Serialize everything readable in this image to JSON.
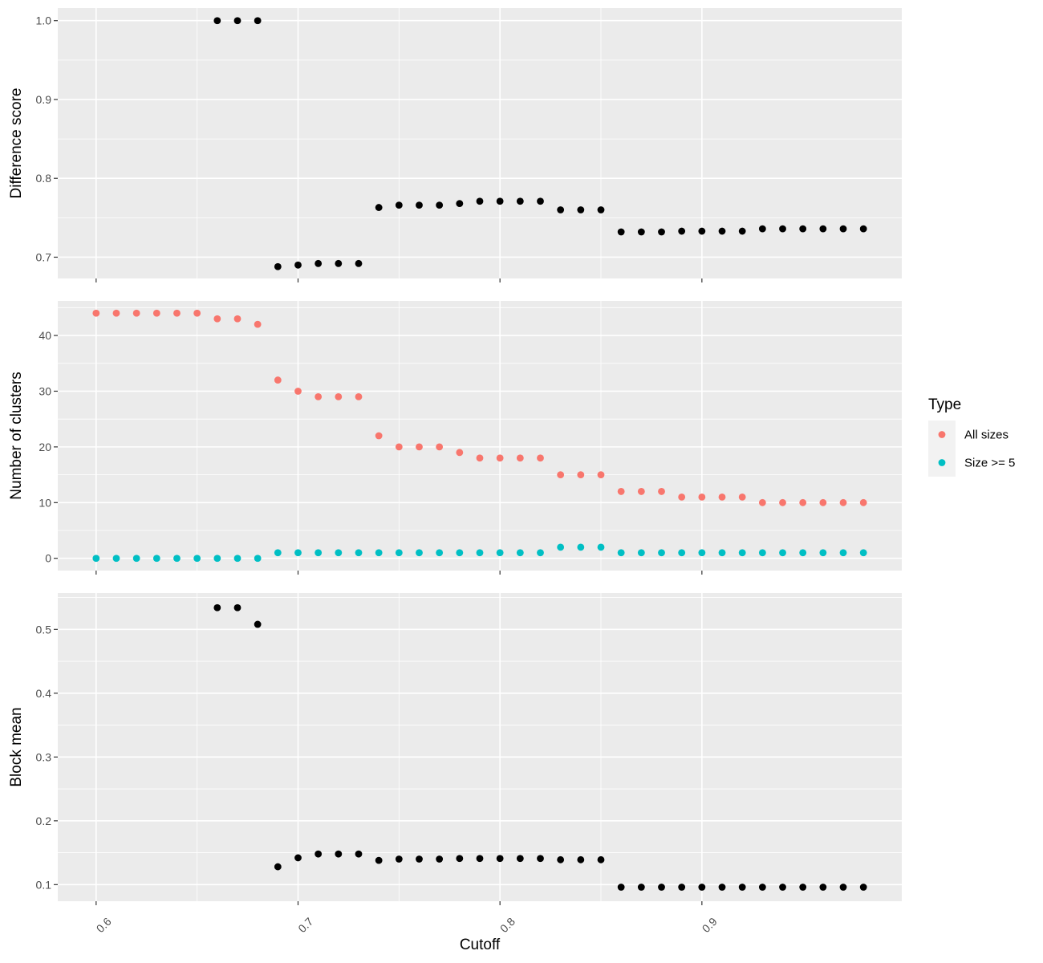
{
  "chart_data": {
    "type": "scatter",
    "layout": "three vertically stacked panels sharing the x axis",
    "x_axis": {
      "label": "Cutoff",
      "lim": [
        0.581,
        0.999
      ],
      "ticks": [
        0.6,
        0.7,
        0.8,
        0.9
      ],
      "tick_labels": [
        "0.6",
        "0.7",
        "0.8",
        "0.9"
      ],
      "tick_label_angle": -45
    },
    "legend": {
      "title": "Type",
      "position": "right",
      "entries": [
        {
          "label": "All sizes",
          "color": "#F8766D"
        },
        {
          "label": "Size >= 5",
          "color": "#00BFC4"
        }
      ]
    },
    "panels": [
      {
        "ylabel": "Difference score",
        "ylim": [
          0.673,
          1.016
        ],
        "y_ticks": [
          0.7,
          0.8,
          0.9,
          1.0
        ],
        "y_tick_labels": [
          "0.7",
          "0.8",
          "0.9",
          "1.0"
        ],
        "series": [
          {
            "color": "#000000",
            "x": [
              0.66,
              0.67,
              0.68,
              0.69,
              0.7,
              0.71,
              0.72,
              0.73,
              0.74,
              0.75,
              0.76,
              0.77,
              0.78,
              0.79,
              0.8,
              0.81,
              0.82,
              0.83,
              0.84,
              0.85,
              0.86,
              0.87,
              0.88,
              0.89,
              0.9,
              0.91,
              0.92,
              0.93,
              0.94,
              0.95,
              0.96,
              0.97,
              0.98
            ],
            "y": [
              1.0,
              1.0,
              1.0,
              0.688,
              0.69,
              0.692,
              0.692,
              0.692,
              0.763,
              0.766,
              0.766,
              0.766,
              0.768,
              0.771,
              0.771,
              0.771,
              0.771,
              0.76,
              0.76,
              0.76,
              0.732,
              0.732,
              0.732,
              0.733,
              0.733,
              0.733,
              0.733,
              0.736,
              0.736,
              0.736,
              0.736,
              0.736,
              0.736
            ]
          }
        ]
      },
      {
        "ylabel": "Number of clusters",
        "ylim": [
          -2.2,
          46.2
        ],
        "y_ticks": [
          0,
          10,
          20,
          30,
          40
        ],
        "y_tick_labels": [
          "0",
          "10",
          "20",
          "30",
          "40"
        ],
        "series": [
          {
            "name": "All sizes",
            "color": "#F8766D",
            "x": [
              0.6,
              0.61,
              0.62,
              0.63,
              0.64,
              0.65,
              0.66,
              0.67,
              0.68,
              0.69,
              0.7,
              0.71,
              0.72,
              0.73,
              0.74,
              0.75,
              0.76,
              0.77,
              0.78,
              0.79,
              0.8,
              0.81,
              0.82,
              0.83,
              0.84,
              0.85,
              0.86,
              0.87,
              0.88,
              0.89,
              0.9,
              0.91,
              0.92,
              0.93,
              0.94,
              0.95,
              0.96,
              0.97,
              0.98
            ],
            "y": [
              44,
              44,
              44,
              44,
              44,
              44,
              43,
              43,
              42,
              32,
              30,
              29,
              29,
              29,
              22,
              20,
              20,
              20,
              19,
              18,
              18,
              18,
              18,
              15,
              15,
              15,
              12,
              12,
              12,
              11,
              11,
              11,
              11,
              10,
              10,
              10,
              10,
              10,
              10
            ]
          },
          {
            "name": "Size >= 5",
            "color": "#00BFC4",
            "x": [
              0.6,
              0.61,
              0.62,
              0.63,
              0.64,
              0.65,
              0.66,
              0.67,
              0.68,
              0.69,
              0.7,
              0.71,
              0.72,
              0.73,
              0.74,
              0.75,
              0.76,
              0.77,
              0.78,
              0.79,
              0.8,
              0.81,
              0.82,
              0.83,
              0.84,
              0.85,
              0.86,
              0.87,
              0.88,
              0.89,
              0.9,
              0.91,
              0.92,
              0.93,
              0.94,
              0.95,
              0.96,
              0.97,
              0.98
            ],
            "y": [
              0,
              0,
              0,
              0,
              0,
              0,
              0,
              0,
              0,
              1,
              1,
              1,
              1,
              1,
              1,
              1,
              1,
              1,
              1,
              1,
              1,
              1,
              1,
              2,
              2,
              2,
              1,
              1,
              1,
              1,
              1,
              1,
              1,
              1,
              1,
              1,
              1,
              1,
              1
            ]
          }
        ]
      },
      {
        "ylabel": "Block mean",
        "ylim": [
          0.074,
          0.557
        ],
        "y_ticks": [
          0.1,
          0.2,
          0.3,
          0.4,
          0.5
        ],
        "y_tick_labels": [
          "0.1",
          "0.2",
          "0.3",
          "0.4",
          "0.5"
        ],
        "series": [
          {
            "color": "#000000",
            "x": [
              0.66,
              0.67,
              0.68,
              0.69,
              0.7,
              0.71,
              0.72,
              0.73,
              0.74,
              0.75,
              0.76,
              0.77,
              0.78,
              0.79,
              0.8,
              0.81,
              0.82,
              0.83,
              0.84,
              0.85,
              0.86,
              0.87,
              0.88,
              0.89,
              0.9,
              0.91,
              0.92,
              0.93,
              0.94,
              0.95,
              0.96,
              0.97,
              0.98
            ],
            "y": [
              0.534,
              0.534,
              0.508,
              0.128,
              0.142,
              0.148,
              0.148,
              0.148,
              0.138,
              0.14,
              0.14,
              0.14,
              0.141,
              0.141,
              0.141,
              0.141,
              0.141,
              0.139,
              0.139,
              0.139,
              0.096,
              0.096,
              0.096,
              0.096,
              0.096,
              0.096,
              0.096,
              0.096,
              0.096,
              0.096,
              0.096,
              0.096,
              0.096
            ]
          }
        ]
      }
    ]
  }
}
